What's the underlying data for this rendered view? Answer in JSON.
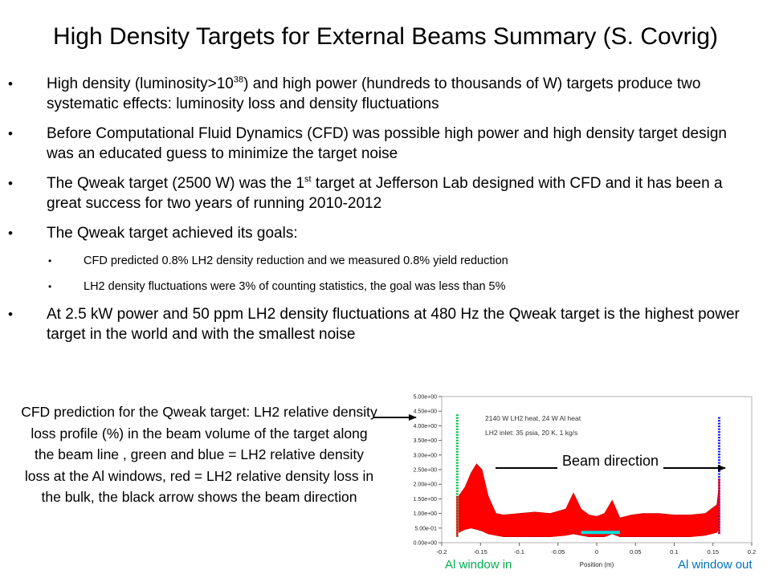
{
  "title": "High Density Targets for External Beams Summary (S. Covrig)",
  "bullets": [
    {
      "pre": "High density (luminosity>10",
      "sup": "38",
      "post": ") and high power (hundreds to thousands of W) targets produce two systematic effects: luminosity loss and density fluctuations"
    },
    {
      "text": "Before Computational Fluid Dynamics (CFD) was possible high power and high density target design was an educated guess to minimize the target noise"
    },
    {
      "pre": "The Qweak target (2500 W) was the 1",
      "sup": "st",
      "post": " target at Jefferson Lab designed with CFD and it has been a great success for two years of running 2010-2012"
    },
    {
      "text": "The Qweak target achieved its goals:"
    },
    {
      "text": "CFD predicted 0.8% LH2 density reduction and we measured 0.8% yield reduction"
    },
    {
      "text": "LH2 density fluctuations were 3% of counting statistics, the goal was less than 5%"
    },
    {
      "text": "At 2.5 kW power and 50 ppm LH2 density fluctuations at 480 Hz the Qweak target is the highest power target in the world and with the smallest noise"
    }
  ],
  "bullet_glyph": "•",
  "caption": "CFD prediction for the Qweak target: LH2 relative density loss profile (%) in the beam volume of the target along the beam line , green and blue = LH2 relative density loss at the Al windows, red = LH2 relative density loss in the bulk, the black arrow shows the beam direction",
  "labels": {
    "beam_direction": "Beam direction",
    "window_in": "Al window in",
    "window_out": "Al window out"
  },
  "colors": {
    "bulk": "#ff0000",
    "window_in": "#00c040",
    "window_out": "#1a1aff",
    "center": "#00e0e0",
    "window_in_label": "#00b050",
    "window_out_label": "#0070c0",
    "plot_bg": "#0a1a4a"
  },
  "chart_data": {
    "type": "scatter",
    "title": "",
    "annotations": [
      "2140 W LH2 heat, 24 W Al heat",
      "LH2 inlet: 35 psia, 20 K, 1 kg/s"
    ],
    "xlabel": "Position (m)",
    "ylabel": "",
    "xlim": [
      -0.2,
      0.2
    ],
    "ylim": [
      0,
      5
    ],
    "x_ticks": [
      "-0.2",
      "-0.15",
      "-0.1",
      "-0.05",
      "0",
      "0.05",
      "0.1",
      "0.15",
      "0.2"
    ],
    "y_ticks": [
      "0.00e+00",
      "5.00e-01",
      "1.00e+00",
      "1.50e+00",
      "2.00e+00",
      "2.50e+00",
      "3.00e+00",
      "3.50e+00",
      "4.00e+00",
      "4.50e+00",
      "5.00e+00"
    ],
    "y_tick_values": [
      0,
      0.5,
      1,
      1.5,
      2,
      2.5,
      3,
      3.5,
      4,
      4.5,
      5
    ],
    "series": [
      {
        "name": "bulk",
        "x": [
          -0.178,
          -0.17,
          -0.162,
          -0.155,
          -0.148,
          -0.14,
          -0.13,
          -0.12,
          -0.1,
          -0.08,
          -0.06,
          -0.04,
          -0.03,
          -0.02,
          -0.01,
          0,
          0.01,
          0.02,
          0.03,
          0.045,
          0.06,
          0.08,
          0.1,
          0.12,
          0.14,
          0.155,
          0.158
        ],
        "upper": [
          1.6,
          1.9,
          2.4,
          2.7,
          2.5,
          1.6,
          1.0,
          0.95,
          1.0,
          1.05,
          1.0,
          1.15,
          1.7,
          1.15,
          0.95,
          0.9,
          1.0,
          1.45,
          0.85,
          0.95,
          1.0,
          1.0,
          0.95,
          0.95,
          1.0,
          1.3,
          2.0
        ],
        "lower": [
          0.35,
          0.45,
          0.5,
          0.45,
          0.4,
          0.3,
          0.25,
          0.2,
          0.2,
          0.2,
          0.2,
          0.25,
          0.3,
          0.25,
          0.2,
          0.2,
          0.2,
          0.3,
          0.2,
          0.2,
          0.2,
          0.2,
          0.2,
          0.2,
          0.25,
          0.35,
          0.5
        ]
      },
      {
        "name": "window_in",
        "x": -0.18,
        "y": [
          0.2,
          4.4
        ]
      },
      {
        "name": "window_out",
        "x": 0.158,
        "y": [
          0.3,
          4.3
        ]
      },
      {
        "name": "center",
        "x": [
          -0.02,
          0.03
        ],
        "y": 0.35
      }
    ]
  }
}
